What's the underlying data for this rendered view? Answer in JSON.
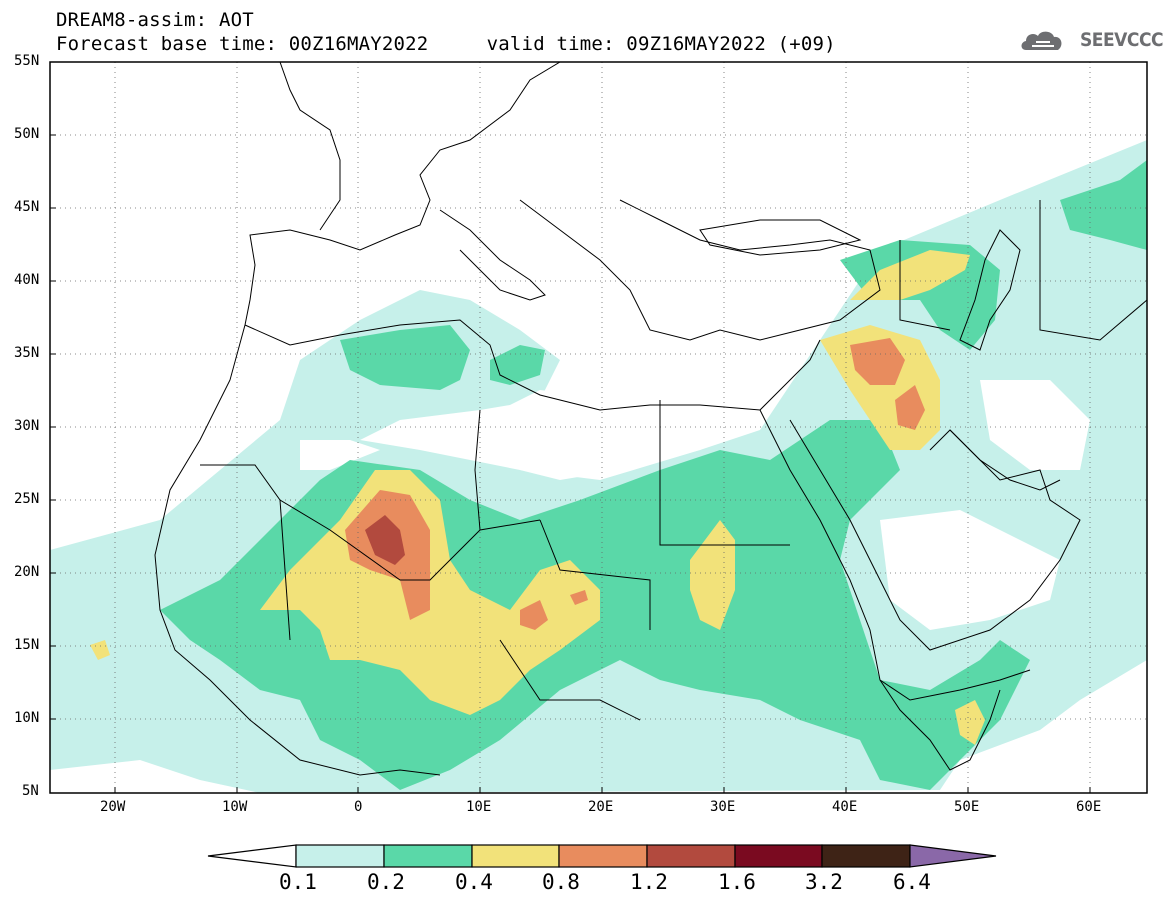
{
  "header": {
    "title": "DREAM8-assim: AOT",
    "subtitle": "Forecast base time: 00Z16MAY2022     valid time: 09Z16MAY2022 (+09)",
    "logo_text": "SEEVCCC",
    "logo_icon": "cloud-logo-icon"
  },
  "axes": {
    "lat_labels": [
      "55N",
      "50N",
      "45N",
      "40N",
      "35N",
      "30N",
      "25N",
      "20N",
      "15N",
      "10N",
      "5N"
    ],
    "lon_labels": [
      "20W",
      "10W",
      "0",
      "10E",
      "20E",
      "30E",
      "40E",
      "50E",
      "60E"
    ]
  },
  "colorbar": {
    "labels": [
      "0.1",
      "0.2",
      "0.4",
      "0.8",
      "1.2",
      "1.6",
      "3.2",
      "6.4"
    ],
    "colors": [
      "#c6f0ea",
      "#5ad8a8",
      "#f2e27a",
      "#e88c5e",
      "#b24a3e",
      "#7a0a20",
      "#3e2316",
      "#8a68a8"
    ]
  },
  "map": {
    "lon_range": [
      -25,
      65
    ],
    "lat_range": [
      5,
      55
    ],
    "grid": "dotted",
    "field": "AOT"
  }
}
